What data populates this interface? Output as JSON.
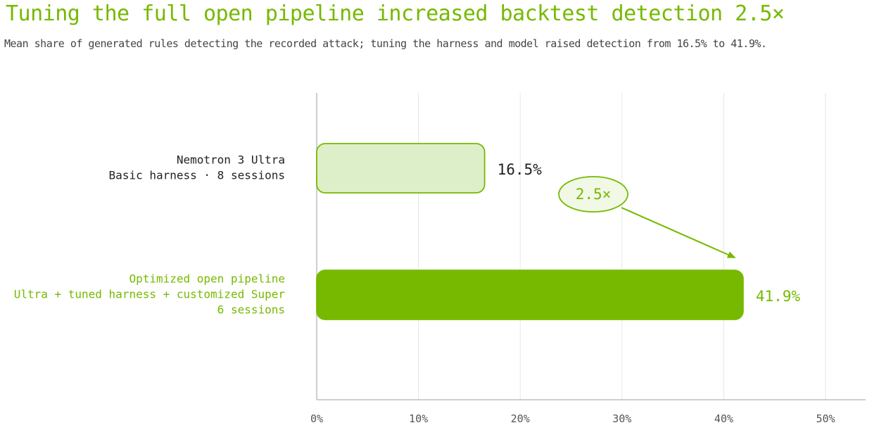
{
  "colors": {
    "accent": "#76b900",
    "light_bar_fill": "#ddefc8",
    "text_dark": "#222222",
    "grid": "#e6e6e6",
    "axis": "#bdbdbd"
  },
  "chart_data": {
    "type": "bar",
    "orientation": "horizontal",
    "title": "Tuning the full open pipeline increased backtest detection 2.5×",
    "subtitle": "Mean share of generated rules detecting the recorded attack; tuning the harness and model raised detection from 16.5% to 41.9%.",
    "xlabel": "",
    "ylabel": "",
    "xlim": [
      0,
      50
    ],
    "xticks": [
      0,
      10,
      20,
      30,
      40,
      50
    ],
    "xtick_labels": [
      "0%",
      "10%",
      "20%",
      "30%",
      "40%",
      "50%"
    ],
    "grid": "vertical",
    "legend": "none",
    "categories": [
      [
        "Nemotron 3 Ultra",
        "Basic harness · 8 sessions"
      ],
      [
        "Optimized open pipeline",
        "Ultra + tuned harness + customized Super",
        "6 sessions"
      ]
    ],
    "values": [
      16.5,
      41.9
    ],
    "value_labels": [
      "16.5%",
      "41.9%"
    ],
    "annotation": {
      "text": "2.5×",
      "points_to_category": 1
    }
  }
}
